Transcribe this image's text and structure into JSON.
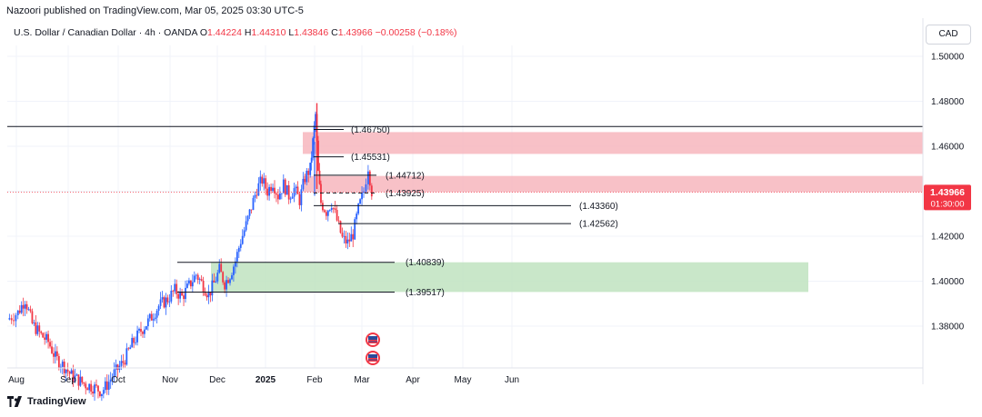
{
  "header": {
    "published": "Nazoori published on TradingView.com, Mar 05, 2025 03:30 UTC-5"
  },
  "symbol": {
    "name": "U.S. Dollar / Canadian Dollar · 4h · OANDA",
    "o_label": "O",
    "o_value": "1.44224",
    "h_label": "H",
    "h_value": "1.44310",
    "l_label": "L",
    "l_value": "1.43846",
    "c_label": "C",
    "c_value": "1.43966",
    "change": "−0.00258 (−0.18%)"
  },
  "currency_button": "CAD",
  "brand": "TradingView",
  "current_price": {
    "value": "1.43966",
    "countdown": "01:30:00",
    "price": 1.43966,
    "color": "#f23645"
  },
  "chart_data": {
    "type": "candlestick",
    "x_ticks": [
      "Aug",
      "Sep",
      "Oct",
      "Nov",
      "Dec",
      "2025",
      "Feb",
      "Mar",
      "Apr",
      "May",
      "Jun"
    ],
    "y_ticks": [
      "1.38000",
      "1.40000",
      "1.42000",
      "1.44000",
      "1.46000",
      "1.48000",
      "1.50000"
    ],
    "ylim": [
      1.362,
      1.5095
    ],
    "grid": true,
    "zones": [
      {
        "name": "resistance-zone-upper",
        "low": 1.4566,
        "high": 1.4663,
        "color": "#f7b6bd",
        "x_from": "Jan 31 2025",
        "x_to": "Right edge"
      },
      {
        "name": "resistance-zone-lower",
        "low": 1.4396,
        "high": 1.4468,
        "color": "#f7b6bd",
        "x_from": "Jan 31 2025",
        "x_to": "Right edge"
      },
      {
        "name": "support-zone",
        "low": 1.3952,
        "high": 1.4084,
        "color": "#bfe3bf",
        "x_from": "Nov 20 2024",
        "x_to": "Jun 2025"
      }
    ],
    "levels": [
      {
        "label": "(1.46750)",
        "price": 1.4675,
        "from": "Jan 31 2025",
        "to": "Feb 2025"
      },
      {
        "label": "(1.45531)",
        "price": 1.45531,
        "from": "Jan 31 2025",
        "to": "Feb 2025"
      },
      {
        "label": "(1.44712)",
        "price": 1.44712,
        "from": "Jan 31 2025",
        "to": "Mar 2025"
      },
      {
        "label": "(1.43925)",
        "price": 1.43925,
        "from": "Jan 31 2025",
        "to": "Mar 2025",
        "dashed": true
      },
      {
        "label": "(1.43360)",
        "price": 1.4336,
        "from": "Jan 31 2025",
        "to": "Apr 2025"
      },
      {
        "label": "(1.42562)",
        "price": 1.42562,
        "from": "Feb 2025",
        "to": "Apr 2025"
      },
      {
        "label": "(1.40839)",
        "price": 1.40839,
        "from": "Nov 2024",
        "to": "Feb 2025"
      },
      {
        "label": "(1.39517)",
        "price": 1.39517,
        "from": "Nov 2024",
        "to": "Feb 2025"
      }
    ],
    "long_line": {
      "price": 1.4688,
      "from": "Left edge",
      "to": "Right edge"
    },
    "price_path": [
      [
        0.0,
        1.383
      ],
      [
        0.6,
        1.386
      ],
      [
        1.0,
        1.392
      ],
      [
        1.4,
        1.381
      ],
      [
        1.9,
        1.376
      ],
      [
        2.3,
        1.373
      ],
      [
        2.7,
        1.366
      ],
      [
        3.2,
        1.362
      ],
      [
        3.6,
        1.358
      ],
      [
        4.0,
        1.356
      ],
      [
        4.4,
        1.354
      ],
      [
        4.8,
        1.353
      ],
      [
        5.3,
        1.351
      ],
      [
        5.6,
        1.354
      ],
      [
        6.0,
        1.359
      ],
      [
        6.5,
        1.364
      ],
      [
        7.0,
        1.372
      ],
      [
        7.5,
        1.378
      ],
      [
        8.0,
        1.383
      ],
      [
        8.5,
        1.389
      ],
      [
        9.0,
        1.392
      ],
      [
        9.4,
        1.396
      ],
      [
        9.8,
        1.393
      ],
      [
        10.2,
        1.398
      ],
      [
        10.6,
        1.403
      ],
      [
        11.0,
        1.398
      ],
      [
        11.3,
        1.394
      ],
      [
        11.6,
        1.399
      ],
      [
        11.9,
        1.405
      ],
      [
        12.2,
        1.399
      ],
      [
        12.5,
        1.403
      ],
      [
        12.8,
        1.409
      ],
      [
        13.1,
        1.418
      ],
      [
        13.4,
        1.425
      ],
      [
        13.7,
        1.433
      ],
      [
        14.0,
        1.441
      ],
      [
        14.3,
        1.445
      ],
      [
        14.6,
        1.44
      ],
      [
        14.9,
        1.444
      ],
      [
        15.2,
        1.438
      ],
      [
        15.5,
        1.443
      ],
      [
        15.8,
        1.438
      ],
      [
        16.1,
        1.441
      ],
      [
        16.4,
        1.436
      ],
      [
        16.7,
        1.446
      ],
      [
        17.0,
        1.45
      ],
      [
        17.15,
        1.462
      ],
      [
        17.3,
        1.474
      ],
      [
        17.45,
        1.448
      ],
      [
        17.6,
        1.435
      ],
      [
        17.9,
        1.431
      ],
      [
        18.2,
        1.435
      ],
      [
        18.5,
        1.427
      ],
      [
        18.8,
        1.419
      ],
      [
        19.1,
        1.417
      ],
      [
        19.4,
        1.421
      ],
      [
        19.7,
        1.432
      ],
      [
        20.0,
        1.44
      ],
      [
        20.25,
        1.451
      ],
      [
        20.45,
        1.44
      ]
    ],
    "event_icons": [
      {
        "name": "us-flag-event",
        "date": "Mar 2025"
      },
      {
        "name": "us-flag-event",
        "date": "Mar 2025"
      }
    ]
  }
}
